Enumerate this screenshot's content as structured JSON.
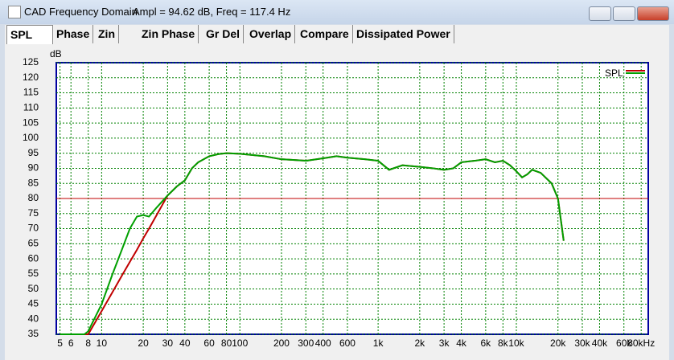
{
  "window": {
    "title": "CAD Frequency Domain",
    "status": "Ampl = 94.62 dB, Freq = 117.4 Hz"
  },
  "tabs": [
    "SPL",
    "Phase",
    "Zin",
    "Zin Phase",
    "Gr Del",
    "Overlap",
    "Compare",
    "Dissipated Power"
  ],
  "chart_data": {
    "type": "line",
    "y_label": "dB",
    "log_x": true,
    "grid": true,
    "legend": "top-right",
    "xlim": [
      4.7,
      90000
    ],
    "ylim": [
      35,
      125
    ],
    "yticks": [
      35,
      40,
      45,
      50,
      55,
      60,
      65,
      70,
      75,
      80,
      85,
      90,
      95,
      100,
      105,
      110,
      115,
      120,
      125
    ],
    "xticks": [
      5,
      6,
      8,
      10,
      20,
      30,
      40,
      60,
      80,
      100,
      200,
      300,
      400,
      600,
      {
        "value": 1000,
        "label": "1k"
      },
      {
        "value": 2000,
        "label": "2k"
      },
      {
        "value": 3000,
        "label": "3k"
      },
      {
        "value": 4000,
        "label": "4k"
      },
      {
        "value": 6000,
        "label": "6k"
      },
      {
        "value": 8000,
        "label": "8k"
      },
      {
        "value": 10000,
        "label": "10k"
      },
      {
        "value": 20000,
        "label": "20k"
      },
      {
        "value": 30000,
        "label": "30k"
      },
      {
        "value": 40000,
        "label": "40k"
      },
      {
        "value": 60000,
        "label": "60k"
      },
      {
        "value": 80000,
        "label": "80kHz"
      }
    ],
    "hline": 80,
    "hline_color": "#c00000",
    "x": [
      5,
      7.5,
      8,
      10,
      12,
      14,
      16,
      18,
      20,
      22,
      25,
      30,
      35,
      40,
      45,
      50,
      60,
      70,
      80,
      100,
      150,
      200,
      300,
      400,
      500,
      600,
      800,
      1000,
      1200,
      1500,
      2000,
      2500,
      3000,
      3500,
      4000,
      5000,
      6000,
      7000,
      8000,
      9000,
      10000,
      11000,
      12000,
      13000,
      15000,
      18000,
      20000,
      22000
    ],
    "series": [
      {
        "name": "SPL",
        "color": "#c00000",
        "values": [
          35,
          35,
          35,
          42.7,
          49,
          54.4,
          59,
          63,
          66.8,
          70,
          74.5,
          81,
          84,
          86,
          90,
          92,
          94,
          94.7,
          95,
          94.8,
          94,
          93,
          92.5,
          93.3,
          94,
          93.5,
          93,
          92.5,
          89.5,
          91,
          90.5,
          90,
          89.5,
          90,
          92,
          92.5,
          93,
          92,
          92.5,
          91,
          89,
          87,
          88,
          89.5,
          88.5,
          85,
          80,
          66
        ]
      },
      {
        "color": "#00a000",
        "values": [
          35,
          35,
          36,
          45,
          55,
          63,
          70,
          74,
          74.5,
          74,
          77,
          81,
          84,
          86,
          90,
          92,
          94,
          94.7,
          95,
          94.8,
          94,
          93,
          92.5,
          93.3,
          94,
          93.5,
          93,
          92.5,
          89.5,
          91,
          90.5,
          90,
          89.5,
          90,
          92,
          92.5,
          93,
          92,
          92.5,
          91,
          89,
          87,
          88,
          89.5,
          88.5,
          85,
          80,
          66
        ]
      }
    ]
  }
}
